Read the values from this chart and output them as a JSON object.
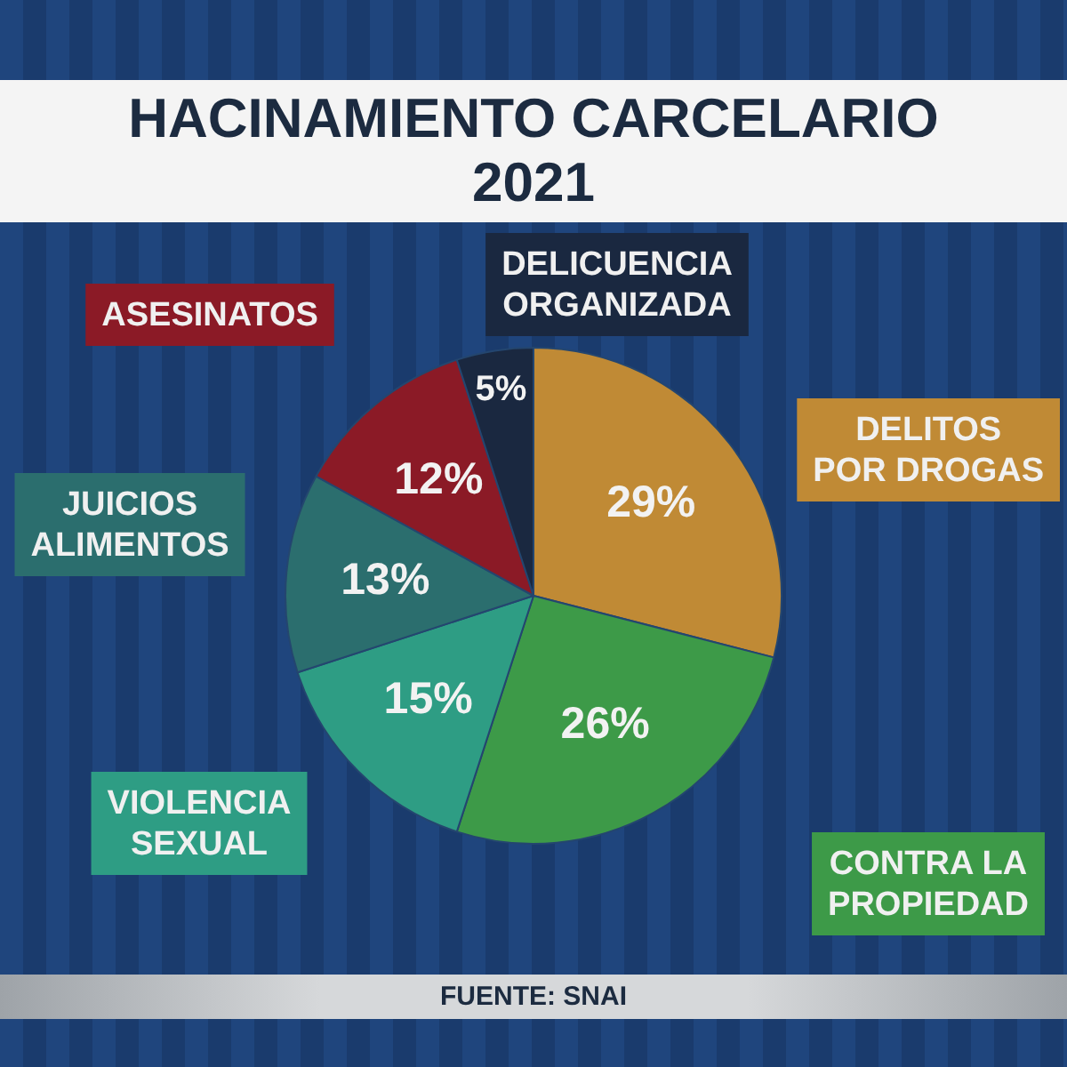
{
  "chart_data": {
    "type": "pie",
    "title": "HACINAMIENTO CARCELARIO 2021",
    "categories": [
      "DELITOS POR DROGAS",
      "CONTRA LA PROPIEDAD",
      "VIOLENCIA SEXUAL",
      "JUICIOS ALIMENTOS",
      "ASESINATOS",
      "DELICUENCIA ORGANIZADA"
    ],
    "values": [
      29,
      26,
      15,
      13,
      12,
      5
    ],
    "colors": [
      "#c08a35",
      "#3d9a48",
      "#2e9d84",
      "#2b6e6e",
      "#8b1a26",
      "#1a2840"
    ],
    "value_labels": [
      "29%",
      "26%",
      "15%",
      "13%",
      "12%",
      "5%"
    ],
    "annotations": [
      "FUENTE: SNAI"
    ]
  }
}
